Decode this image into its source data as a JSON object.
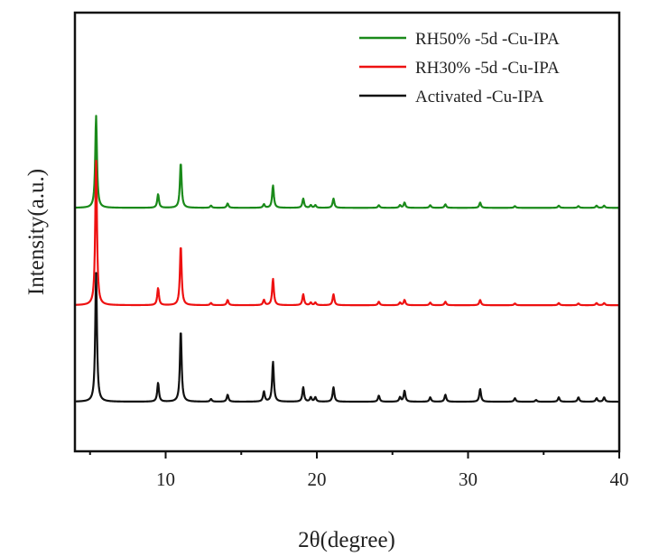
{
  "chart_data": {
    "type": "line",
    "xlabel": "2θ(degree)",
    "ylabel": "Intensity(a.u.)",
    "xlim": [
      4,
      40
    ],
    "ylim": [
      0,
      100
    ],
    "xticks": [
      10,
      20,
      30,
      40
    ],
    "xticks_minor": [
      5,
      15,
      25,
      35
    ],
    "grid": false,
    "legend_position": "top-right",
    "peak_width_deg": 0.1,
    "series": [
      {
        "name": "RH50% -5d -Cu-IPA",
        "color": "#1a8a1a",
        "baseline": 55.5,
        "peaks": [
          [
            5.4,
            21
          ],
          [
            9.5,
            3.1
          ],
          [
            11.0,
            10.3
          ],
          [
            13.0,
            0.5
          ],
          [
            14.1,
            1.0
          ],
          [
            16.5,
            0.8
          ],
          [
            17.1,
            5.1
          ],
          [
            19.1,
            2.1
          ],
          [
            19.6,
            0.6
          ],
          [
            19.9,
            0.6
          ],
          [
            21.1,
            2.1
          ],
          [
            24.1,
            0.6
          ],
          [
            25.5,
            0.6
          ],
          [
            25.8,
            1.2
          ],
          [
            27.5,
            0.6
          ],
          [
            28.5,
            0.8
          ],
          [
            30.8,
            1.2
          ],
          [
            33.1,
            0.4
          ],
          [
            36.0,
            0.5
          ],
          [
            37.3,
            0.4
          ],
          [
            38.5,
            0.5
          ],
          [
            39.0,
            0.5
          ]
        ]
      },
      {
        "name": "RH30% -5d -Cu-IPA",
        "color": "#ee1111",
        "baseline": 33.3,
        "peaks": [
          [
            5.4,
            33
          ],
          [
            9.5,
            3.9
          ],
          [
            11.0,
            13.6
          ],
          [
            13.0,
            0.5
          ],
          [
            14.1,
            1.2
          ],
          [
            16.5,
            1.2
          ],
          [
            17.1,
            6.0
          ],
          [
            19.1,
            2.5
          ],
          [
            19.6,
            0.6
          ],
          [
            19.9,
            0.6
          ],
          [
            21.1,
            2.5
          ],
          [
            24.1,
            0.8
          ],
          [
            25.5,
            0.6
          ],
          [
            25.8,
            1.2
          ],
          [
            27.5,
            0.6
          ],
          [
            28.5,
            0.8
          ],
          [
            30.8,
            1.2
          ],
          [
            33.1,
            0.4
          ],
          [
            36.0,
            0.5
          ],
          [
            37.3,
            0.4
          ],
          [
            38.5,
            0.5
          ],
          [
            39.0,
            0.5
          ]
        ]
      },
      {
        "name": "Activated -Cu-IPA",
        "color": "#111111",
        "baseline": 11.3,
        "peaks": [
          [
            5.4,
            29.4
          ],
          [
            9.5,
            4.3
          ],
          [
            11.0,
            16.3
          ],
          [
            13.0,
            0.6
          ],
          [
            14.1,
            1.6
          ],
          [
            16.5,
            2.3
          ],
          [
            17.1,
            9.1
          ],
          [
            19.1,
            3.3
          ],
          [
            19.6,
            1.0
          ],
          [
            19.9,
            1.0
          ],
          [
            21.1,
            3.3
          ],
          [
            24.1,
            1.4
          ],
          [
            25.5,
            1.0
          ],
          [
            25.8,
            2.5
          ],
          [
            27.5,
            1.0
          ],
          [
            28.5,
            1.6
          ],
          [
            30.8,
            2.9
          ],
          [
            33.1,
            0.8
          ],
          [
            34.5,
            0.4
          ],
          [
            36.0,
            1.0
          ],
          [
            37.3,
            1.0
          ],
          [
            38.5,
            0.8
          ],
          [
            39.0,
            1.0
          ]
        ]
      }
    ]
  }
}
